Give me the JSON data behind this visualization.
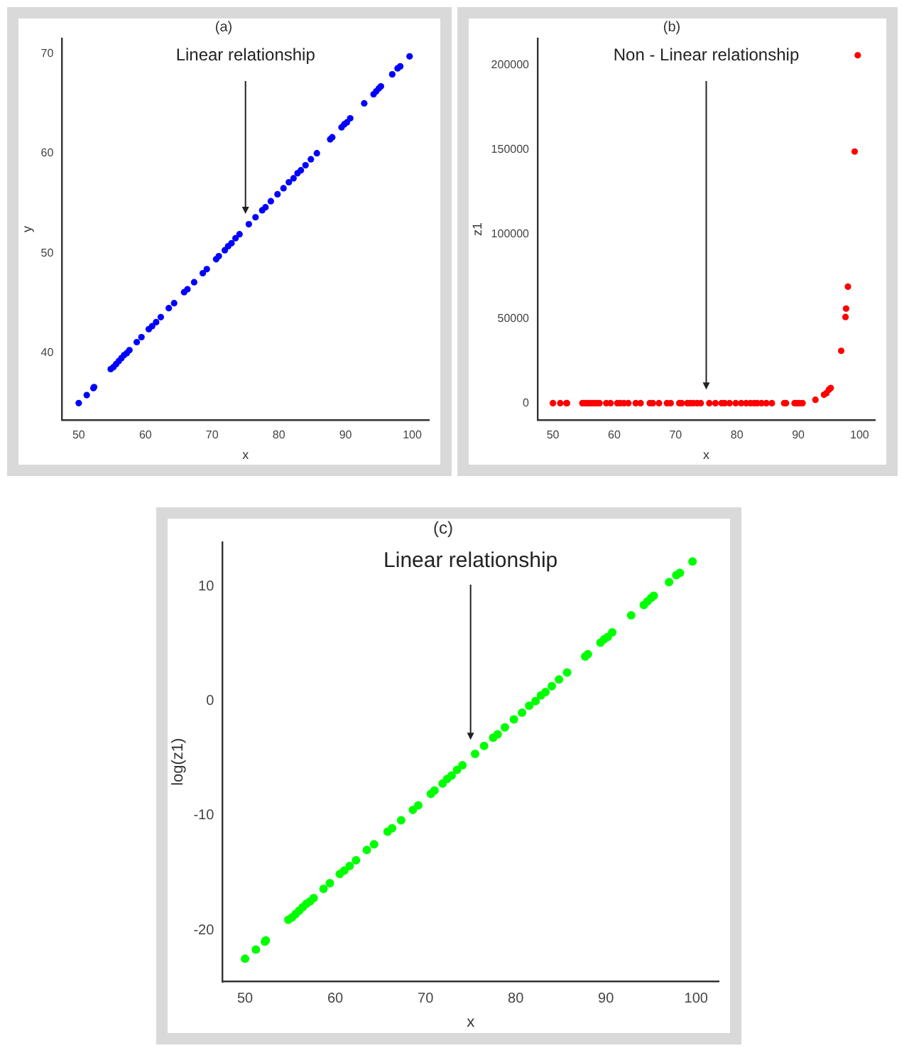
{
  "chart_data": [
    {
      "type": "scatter",
      "title": "(a)",
      "xlabel": "x",
      "ylabel": "y",
      "grid": false,
      "legend": false,
      "marker": "circle",
      "xlim": [
        47.5,
        102.5
      ],
      "xticks": [
        50,
        60,
        70,
        80,
        90,
        100
      ],
      "ylim": [
        33.3,
        71.5
      ],
      "yticks": [
        40,
        50,
        60,
        70
      ],
      "annotations": [
        "Linear relationship"
      ],
      "series": [
        {
          "color": "#0000ff",
          "x": [
            50,
            51.2,
            52.2,
            52.3,
            54.8,
            55.2,
            55.6,
            56,
            56.4,
            56.8,
            57.2,
            57.6,
            58.7,
            59.4,
            60.5,
            61,
            61.6,
            62.3,
            63.5,
            64.3,
            65.8,
            66.3,
            67.3,
            68.6,
            69.2,
            70.6,
            71,
            71.9,
            72.4,
            72.9,
            73.5,
            74.1,
            75.5,
            76.5,
            77.5,
            78,
            78.8,
            79.8,
            80.7,
            81.5,
            82.2,
            82.8,
            83.3,
            84,
            84.8,
            85.7,
            87.7,
            88,
            89.4,
            89.8,
            90.2,
            90.7,
            92.8,
            94.2,
            94.6,
            95,
            95.3,
            97,
            97.8,
            98.2,
            99.6
          ],
          "values": [
            35,
            35.8,
            36.5,
            36.6,
            38.4,
            38.6,
            38.9,
            39.2,
            39.5,
            39.8,
            40,
            40.3,
            41.1,
            41.6,
            42.4,
            42.7,
            43.1,
            43.6,
            44.5,
            45,
            46.1,
            46.4,
            47.1,
            48,
            48.4,
            49.4,
            49.7,
            50.3,
            50.7,
            51,
            51.5,
            51.9,
            52.9,
            53.6,
            54.3,
            54.6,
            55.2,
            55.9,
            56.5,
            57.1,
            57.5,
            58,
            58.3,
            58.8,
            59.4,
            60,
            61.4,
            61.6,
            62.6,
            62.9,
            63.1,
            63.5,
            65,
            65.9,
            66.2,
            66.5,
            66.7,
            67.9,
            68.5,
            68.7,
            69.7
          ]
        }
      ]
    },
    {
      "type": "scatter",
      "title": "(b)",
      "xlabel": "x",
      "ylabel": "z1",
      "grid": false,
      "legend": false,
      "marker": "circle",
      "xlim": [
        47.5,
        102.5
      ],
      "xticks": [
        50,
        60,
        70,
        80,
        90,
        100
      ],
      "ylim": [
        -10000,
        216000
      ],
      "yticks": [
        0,
        50000,
        100000,
        150000,
        200000
      ],
      "annotations": [
        "Non - Linear relationship"
      ],
      "series": [
        {
          "color": "#ff0000",
          "x": [
            50,
            51.2,
            52.2,
            52.3,
            54.8,
            55.2,
            55.6,
            56,
            56.4,
            56.8,
            57.2,
            57.6,
            58.7,
            59.4,
            60.5,
            61,
            61.6,
            62.3,
            63.5,
            64.3,
            65.8,
            66.3,
            67.3,
            68.6,
            69.2,
            70.6,
            71,
            71.9,
            72.4,
            72.9,
            73.5,
            74.1,
            75.5,
            76.5,
            77.5,
            78,
            78.8,
            79.8,
            80.7,
            81.5,
            82.2,
            82.8,
            83.3,
            84,
            84.8,
            85.7,
            87.7,
            88,
            89.4,
            89.8,
            90.2,
            90.7,
            92.8,
            94.2,
            94.6,
            95,
            95.3,
            97,
            97.7,
            97.8,
            98.1,
            99.2,
            99.7
          ],
          "values": [
            0,
            0,
            0,
            0,
            0,
            0,
            0,
            0,
            0,
            0,
            0,
            0,
            0,
            0,
            0,
            0,
            0,
            0,
            0,
            0,
            0,
            0,
            0,
            0,
            0,
            0,
            0,
            0,
            0,
            0,
            0,
            0,
            0,
            0,
            0,
            0,
            0,
            0,
            0,
            0,
            0,
            0,
            0,
            0,
            0,
            0,
            0,
            0,
            0,
            0,
            0,
            0,
            2000,
            5000,
            6000,
            8000,
            9000,
            31000,
            51000,
            56000,
            69000,
            149000,
            206000
          ]
        }
      ]
    },
    {
      "type": "scatter",
      "title": "(c)",
      "xlabel": "x",
      "ylabel": "log(z1)",
      "grid": false,
      "legend": false,
      "marker": "circle",
      "xlim": [
        47.5,
        102.5
      ],
      "xticks": [
        50,
        60,
        70,
        80,
        90,
        100
      ],
      "ylim": [
        -24.5,
        13.9
      ],
      "yticks": [
        -20,
        -10,
        0,
        10
      ],
      "annotations": [
        "Linear relationship"
      ],
      "series": [
        {
          "color": "#00ff00",
          "x": [
            50,
            51.2,
            52.2,
            52.3,
            54.8,
            55.2,
            55.6,
            56,
            56.4,
            56.8,
            57.2,
            57.6,
            58.7,
            59.4,
            60.5,
            61,
            61.6,
            62.3,
            63.5,
            64.3,
            65.8,
            66.3,
            67.3,
            68.6,
            69.2,
            70.6,
            71,
            71.9,
            72.4,
            72.9,
            73.5,
            74.1,
            75.5,
            76.5,
            77.5,
            78,
            78.8,
            79.8,
            80.7,
            81.5,
            82.2,
            82.8,
            83.3,
            84,
            84.8,
            85.7,
            87.7,
            88,
            89.4,
            89.8,
            90.2,
            90.7,
            92.8,
            94.2,
            94.6,
            95,
            95.3,
            97,
            97.8,
            98.2,
            99.6
          ],
          "values": [
            -22.5,
            -21.7,
            -21,
            -20.9,
            -19.1,
            -18.9,
            -18.6,
            -18.3,
            -18,
            -17.7,
            -17.5,
            -17.2,
            -16.4,
            -15.9,
            -15.1,
            -14.8,
            -14.4,
            -13.9,
            -13,
            -12.5,
            -11.4,
            -11.1,
            -10.4,
            -9.5,
            -9.1,
            -8.1,
            -7.8,
            -7.2,
            -6.8,
            -6.5,
            -6,
            -5.6,
            -4.6,
            -3.9,
            -3.2,
            -2.9,
            -2.3,
            -1.6,
            -1,
            -0.4,
            0,
            0.5,
            0.8,
            1.3,
            1.9,
            2.5,
            3.9,
            4.1,
            5.1,
            5.4,
            5.6,
            6,
            7.5,
            8.4,
            8.7,
            9,
            9.2,
            10.4,
            11,
            11.2,
            12.2
          ]
        }
      ]
    }
  ]
}
